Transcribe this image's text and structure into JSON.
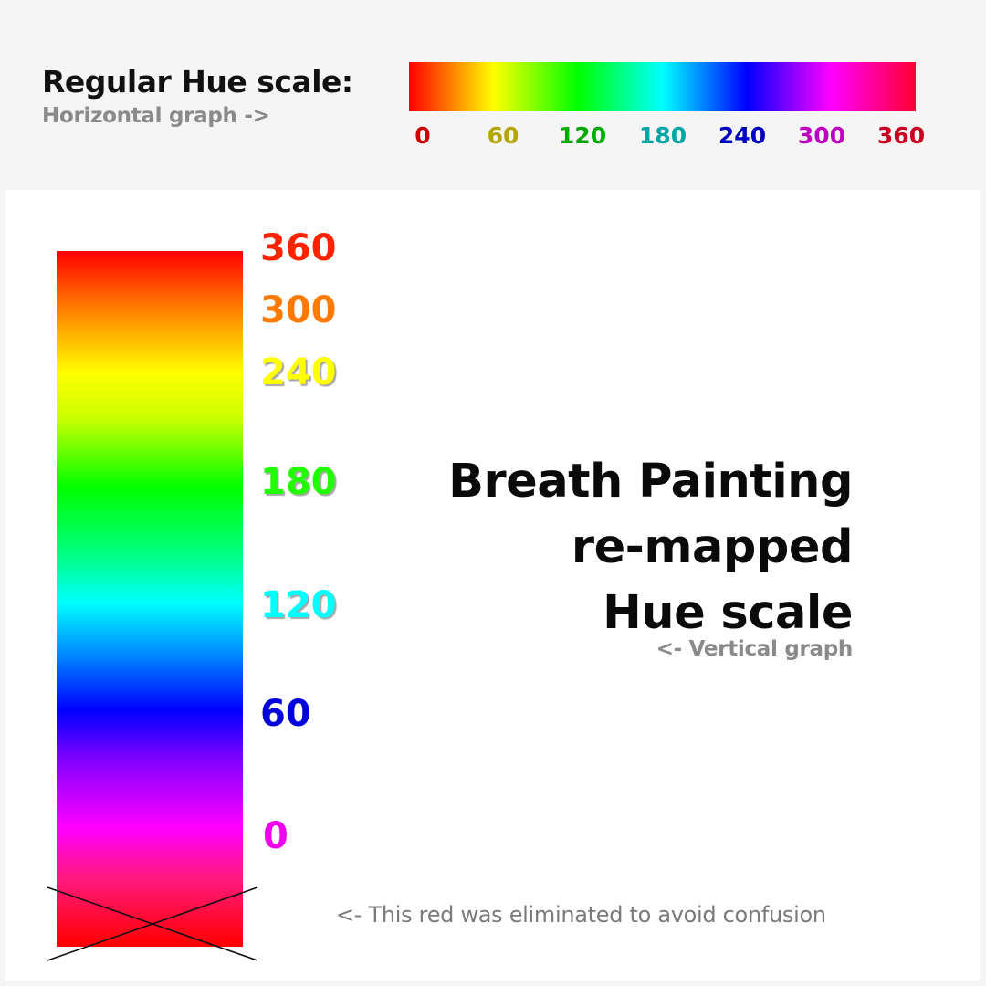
{
  "regular": {
    "title": "Regular Hue scale:",
    "subtitle": "Horizontal graph ->",
    "ticks": [
      {
        "label": "0",
        "color": "#c80000"
      },
      {
        "label": "60",
        "color": "#b3a600"
      },
      {
        "label": "120",
        "color": "#00a800"
      },
      {
        "label": "180",
        "color": "#00a6a6"
      },
      {
        "label": "240",
        "color": "#0000c0"
      },
      {
        "label": "300",
        "color": "#c000c0"
      },
      {
        "label": "360",
        "color": "#c80020"
      }
    ]
  },
  "remapped": {
    "title_lines": [
      "Breath Painting",
      "re-mapped",
      "Hue scale"
    ],
    "subtitle": "<- Vertical graph",
    "ticks": [
      {
        "label": "360",
        "color": "#ff2200"
      },
      {
        "label": "300",
        "color": "#ff7a00"
      },
      {
        "label": "240",
        "color": "#ffff00"
      },
      {
        "label": "180",
        "color": "#22ff00"
      },
      {
        "label": "120",
        "color": "#00ffff"
      },
      {
        "label": "60",
        "color": "#0000dd"
      },
      {
        "label": "0",
        "color": "#ee00ee"
      }
    ],
    "eliminated_note": "<- This red was eliminated to avoid confusion"
  }
}
